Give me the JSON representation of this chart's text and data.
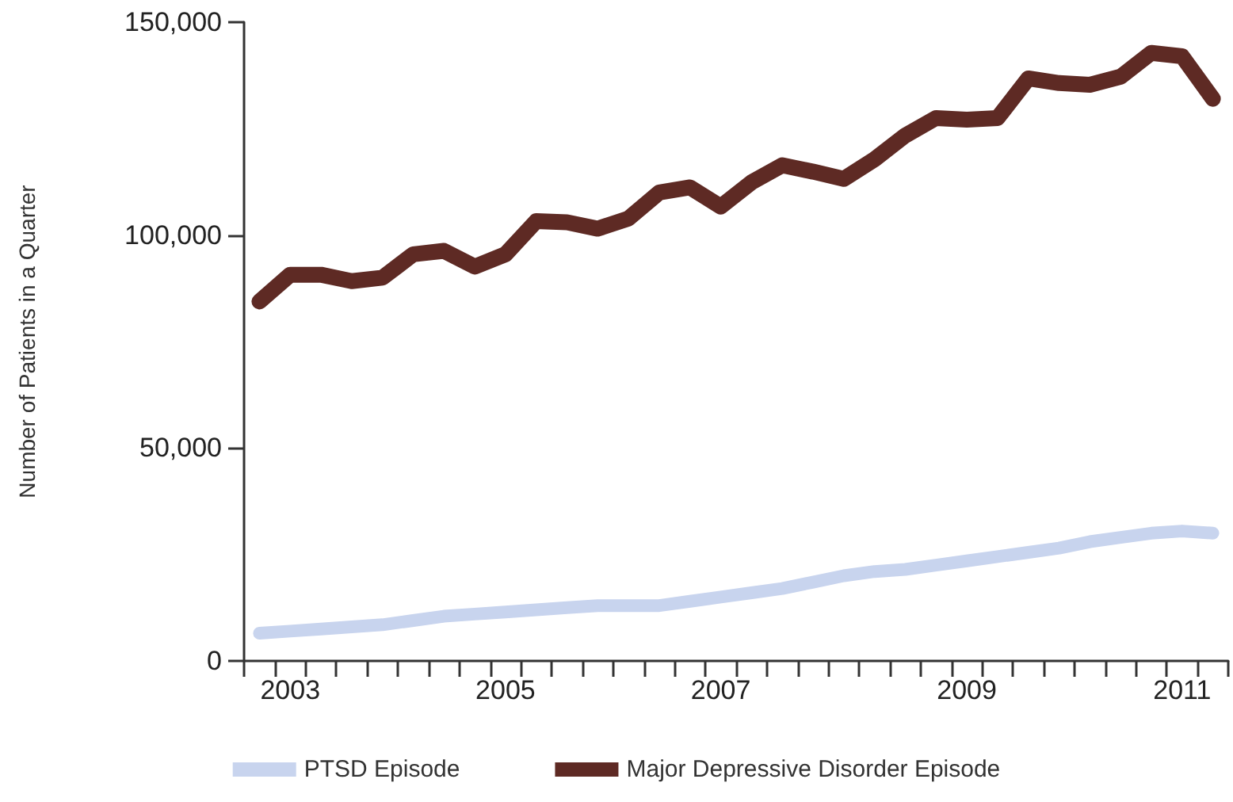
{
  "chart_data": {
    "type": "line",
    "ylabel": "Number of Patients in a Quarter",
    "categories": [
      null,
      "2003",
      null,
      null,
      null,
      null,
      null,
      null,
      "2005",
      null,
      null,
      null,
      null,
      null,
      null,
      "2007",
      null,
      null,
      null,
      null,
      null,
      null,
      null,
      "2009",
      null,
      null,
      null,
      null,
      null,
      null,
      "2011",
      null
    ],
    "series": [
      {
        "name": "PTSD Episode",
        "color": "#c8d4ee",
        "values": [
          6500,
          7000,
          7500,
          8000,
          8500,
          9500,
          10500,
          11000,
          11500,
          12000,
          12500,
          13000,
          13000,
          13000,
          14000,
          15000,
          16000,
          17000,
          18500,
          20000,
          21000,
          21500,
          22500,
          23500,
          24500,
          25500,
          26500,
          28000,
          29000,
          30000,
          30500,
          30000
        ]
      },
      {
        "name": "Major Depressive Disorder Episode",
        "color": "#5e2a24",
        "values": [
          84400,
          90700,
          90700,
          89200,
          90000,
          95500,
          96300,
          92600,
          95500,
          103300,
          103000,
          101500,
          103900,
          110000,
          111200,
          106700,
          112400,
          116400,
          114900,
          113200,
          117800,
          123400,
          127500,
          127100,
          127500,
          136800,
          135700,
          135300,
          137200,
          142800,
          142000,
          132000
        ]
      }
    ],
    "ylim": [
      0,
      150000
    ],
    "yticks": [
      0,
      {
        "value": 50000,
        "label": "50,000"
      },
      {
        "value": 100000,
        "label": "100,000"
      },
      {
        "value": 150000,
        "label": "150,000"
      }
    ],
    "grid": false,
    "legend": "bottom",
    "line_style": "solid"
  }
}
